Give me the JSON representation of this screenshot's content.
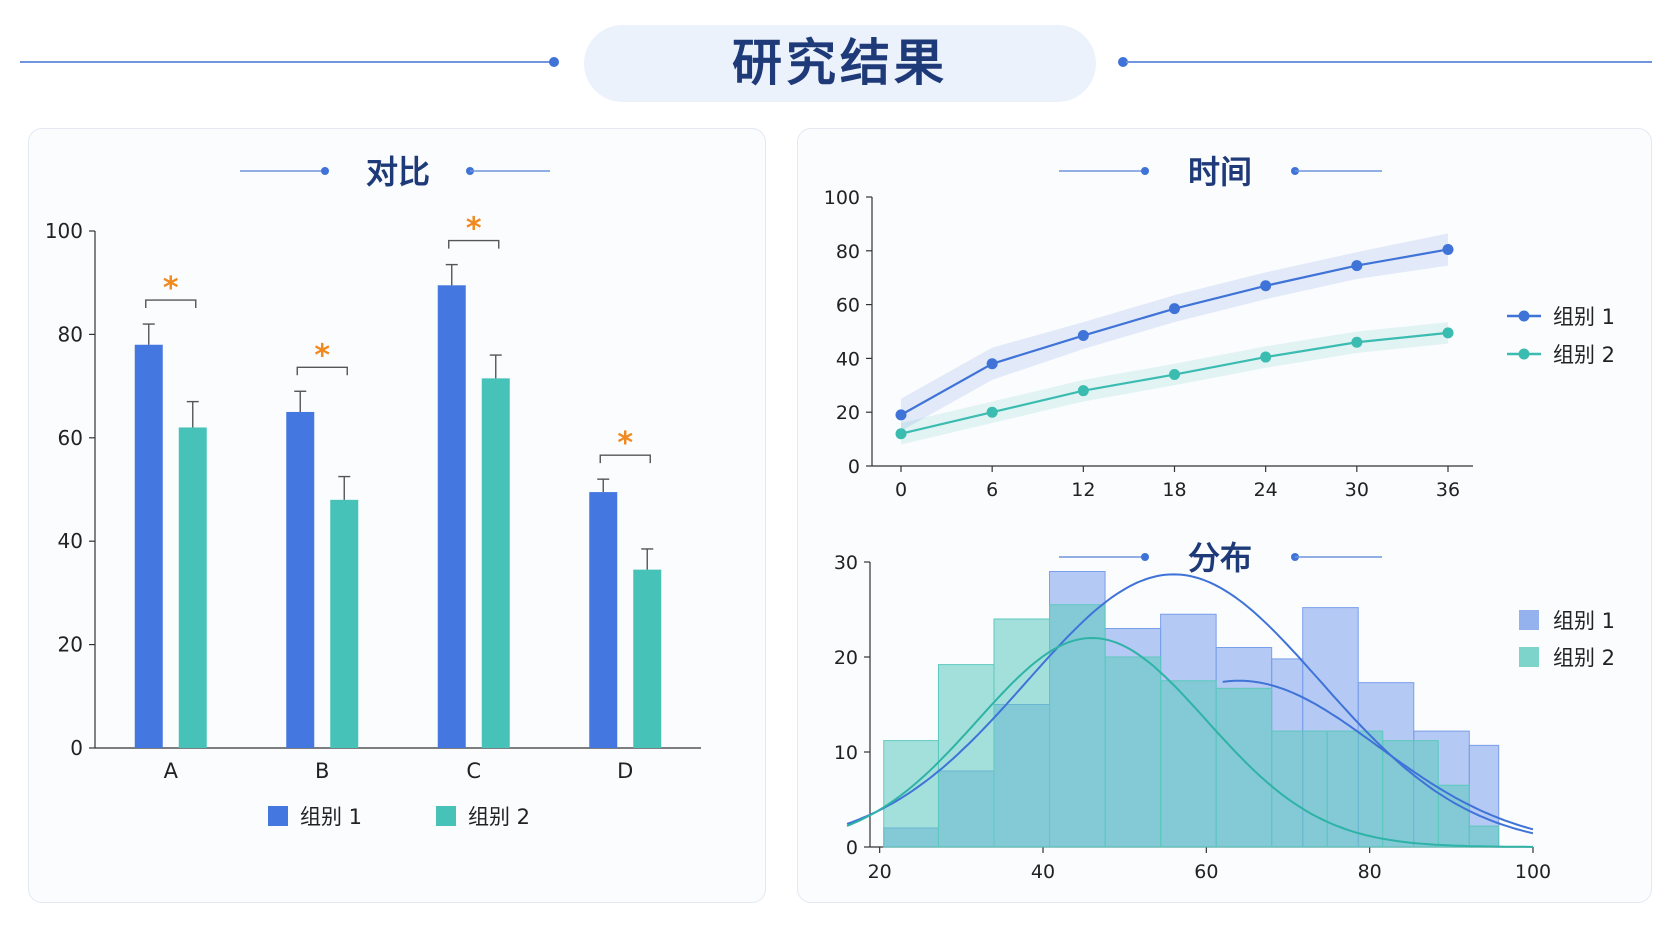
{
  "page": {
    "title": "研究结果"
  },
  "chart_data": [
    {
      "id": "compare",
      "type": "bar",
      "title": "对比",
      "categories": [
        "A",
        "B",
        "C",
        "D"
      ],
      "series": [
        {
          "name": "组别 1",
          "values": [
            78,
            65,
            89.5,
            49.5
          ],
          "errors": [
            4,
            4,
            4,
            2.5
          ]
        },
        {
          "name": "组别 2",
          "values": [
            62,
            48,
            71.5,
            34.5
          ],
          "errors": [
            5,
            4.5,
            4.5,
            4
          ]
        }
      ],
      "significance": [
        "*",
        "*",
        "*",
        "*"
      ],
      "ylim": [
        0,
        100
      ],
      "yticks": [
        0,
        20,
        40,
        60,
        80,
        100
      ],
      "legend": "bottom",
      "colors": [
        "#4477df",
        "#46c2b8"
      ],
      "annotation_color": "#f08a1e"
    },
    {
      "id": "time",
      "type": "line",
      "title": "时间",
      "x": [
        0,
        6,
        12,
        18,
        24,
        30,
        36
      ],
      "series": [
        {
          "name": "组别 1",
          "values": [
            19,
            38,
            48.5,
            58.5,
            67,
            74.5,
            80.5
          ],
          "band": [
            6,
            6,
            5,
            5,
            5,
            5,
            6
          ]
        },
        {
          "name": "组别 2",
          "values": [
            12,
            20,
            28,
            34,
            40.5,
            46,
            49.5
          ],
          "band": [
            4,
            4,
            4,
            4,
            4,
            4,
            4
          ]
        }
      ],
      "ylim": [
        0,
        100
      ],
      "yticks": [
        0,
        20,
        40,
        60,
        80,
        100
      ],
      "legend": "right",
      "colors": [
        "#3f73d8",
        "#3bbcb0"
      ]
    },
    {
      "id": "dist",
      "type": "histogram",
      "title": "分布",
      "xlim": [
        16,
        100
      ],
      "xticks": [
        20,
        40,
        60,
        80,
        100
      ],
      "ylim": [
        0,
        30
      ],
      "yticks": [
        0,
        10,
        20,
        30
      ],
      "series": [
        {
          "name": "组别 1",
          "bins": [
            [
              20.5,
              27.2,
              2
            ],
            [
              27.2,
              34,
              8
            ],
            [
              34,
              40.8,
              15
            ],
            [
              40.8,
              47.6,
              29
            ],
            [
              47.6,
              54.4,
              23
            ],
            [
              54.4,
              61.2,
              24.5
            ],
            [
              61.2,
              68,
              21
            ],
            [
              68,
              71.8,
              19.8
            ],
            [
              71.8,
              78.6,
              25.2
            ],
            [
              78.6,
              85.4,
              17.3
            ],
            [
              85.4,
              92.2,
              12.2
            ],
            [
              92.2,
              95.8,
              10.7
            ]
          ],
          "curve": {
            "mean": 56,
            "sd": 18,
            "peak": 28.7
          }
        },
        {
          "name": "组别 2",
          "bins": [
            [
              20.5,
              27.2,
              11.2
            ],
            [
              27.2,
              34,
              19.2
            ],
            [
              34,
              40.8,
              24
            ],
            [
              40.8,
              47.6,
              25.5
            ],
            [
              47.6,
              54.4,
              20
            ],
            [
              54.4,
              61.2,
              17.5
            ],
            [
              61.2,
              68,
              16.7
            ],
            [
              68,
              74.8,
              12.2
            ],
            [
              74.8,
              81.6,
              12.2
            ],
            [
              81.6,
              88.4,
              11.2
            ],
            [
              88.4,
              92.2,
              6.5
            ],
            [
              92.2,
              95.8,
              2.2
            ]
          ],
          "curve": {
            "mean": 46,
            "sd": 14,
            "peak": 22
          },
          "curve2": {
            "mean": 64,
            "sd": 17,
            "peak": 17.5
          }
        }
      ],
      "legend": "right",
      "colors": [
        "#7a9fea",
        "#5cc9be"
      ]
    }
  ]
}
